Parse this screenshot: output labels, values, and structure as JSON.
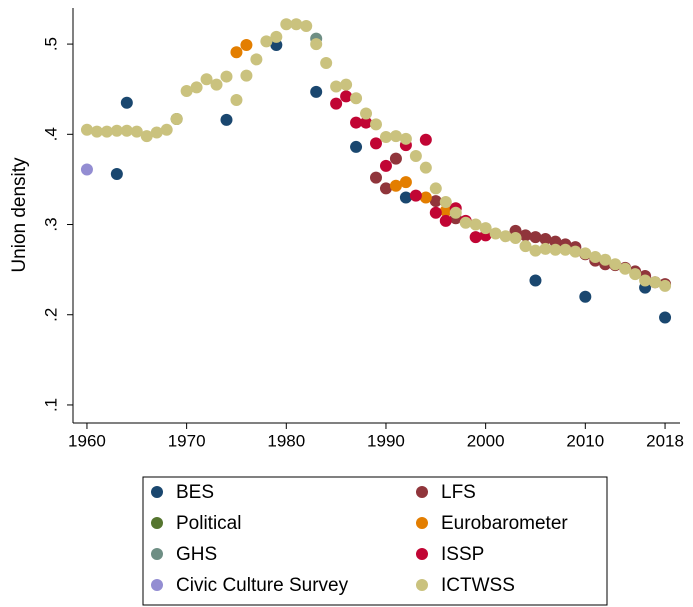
{
  "chart_data": {
    "type": "scatter",
    "y_label": "Union density",
    "xlim": [
      1958.6,
      2019.5
    ],
    "ylim": [
      0.08,
      0.54
    ],
    "xticks": [
      1960,
      1970,
      1980,
      1990,
      2000,
      2010,
      2018
    ],
    "yticks": [
      {
        "value": 0.1,
        "label": ".1"
      },
      {
        "value": 0.2,
        "label": ".2"
      },
      {
        "value": 0.3,
        "label": ".3"
      },
      {
        "value": 0.4,
        "label": ".4"
      },
      {
        "value": 0.5,
        "label": ".5"
      }
    ],
    "series": [
      {
        "name": "BES",
        "color": "#1a476f",
        "x": [
          1963,
          1964,
          1974,
          1979,
          1983,
          1987,
          1992,
          2005,
          2010,
          2016,
          2018
        ],
        "values": [
          0.356,
          0.435,
          0.416,
          0.499,
          0.447,
          0.386,
          0.33,
          0.238,
          0.22,
          0.23,
          0.197
        ]
      },
      {
        "name": "LFS",
        "color": "#90353b",
        "x": [
          1989,
          1990,
          1991,
          1995,
          1997,
          2003,
          2004,
          2005,
          2006,
          2007,
          2008,
          2009,
          2010,
          2011,
          2012,
          2013,
          2014,
          2015,
          2016,
          2017,
          2018
        ],
        "values": [
          0.352,
          0.34,
          0.373,
          0.326,
          0.307,
          0.293,
          0.288,
          0.286,
          0.284,
          0.281,
          0.278,
          0.275,
          0.267,
          0.26,
          0.256,
          0.255,
          0.252,
          0.248,
          0.243,
          0.236,
          0.234
        ]
      },
      {
        "name": "Political",
        "color": "#55752f",
        "x": [
          1969
        ],
        "values": [
          0.417
        ]
      },
      {
        "name": "Eurobarometer",
        "color": "#e37e00",
        "x": [
          1975,
          1976,
          1991,
          1992,
          1994,
          1996
        ],
        "values": [
          0.491,
          0.499,
          0.343,
          0.347,
          0.33,
          0.315
        ]
      },
      {
        "name": "GHS",
        "color": "#6e8e84",
        "x": [
          1983
        ],
        "values": [
          0.506
        ]
      },
      {
        "name": "ISSP",
        "color": "#c10534",
        "x": [
          1985,
          1986,
          1987,
          1988,
          1989,
          1990,
          1992,
          1993,
          1994,
          1995,
          1996,
          1997,
          1998,
          1999,
          2000
        ],
        "values": [
          0.434,
          0.442,
          0.413,
          0.413,
          0.39,
          0.365,
          0.388,
          0.332,
          0.394,
          0.313,
          0.304,
          0.318,
          0.304,
          0.286,
          0.288
        ]
      },
      {
        "name": "Civic Culture Survey",
        "color": "#938dd2",
        "x": [
          1960
        ],
        "values": [
          0.361
        ]
      },
      {
        "name": "ICTWSS",
        "color": "#cac27e",
        "x": [
          1960,
          1961,
          1962,
          1963,
          1964,
          1965,
          1966,
          1967,
          1968,
          1969,
          1970,
          1971,
          1972,
          1973,
          1974,
          1975,
          1976,
          1977,
          1978,
          1979,
          1980,
          1981,
          1982,
          1983,
          1984,
          1985,
          1986,
          1987,
          1988,
          1989,
          1990,
          1991,
          1992,
          1993,
          1994,
          1995,
          1996,
          1997,
          1998,
          1999,
          2000,
          2001,
          2002,
          2003,
          2004,
          2005,
          2006,
          2007,
          2008,
          2009,
          2010,
          2011,
          2012,
          2013,
          2014,
          2015,
          2016,
          2017,
          2018
        ],
        "values": [
          0.405,
          0.403,
          0.403,
          0.404,
          0.404,
          0.403,
          0.398,
          0.402,
          0.405,
          0.417,
          0.448,
          0.452,
          0.461,
          0.455,
          0.464,
          0.438,
          0.465,
          0.483,
          0.503,
          0.508,
          0.522,
          0.522,
          0.52,
          0.5,
          0.479,
          0.453,
          0.455,
          0.44,
          0.423,
          0.411,
          0.397,
          0.398,
          0.395,
          0.376,
          0.363,
          0.34,
          0.325,
          0.313,
          0.302,
          0.3,
          0.296,
          0.29,
          0.287,
          0.285,
          0.276,
          0.271,
          0.273,
          0.272,
          0.272,
          0.27,
          0.268,
          0.264,
          0.261,
          0.256,
          0.251,
          0.245,
          0.238,
          0.236,
          0.232
        ]
      }
    ]
  }
}
